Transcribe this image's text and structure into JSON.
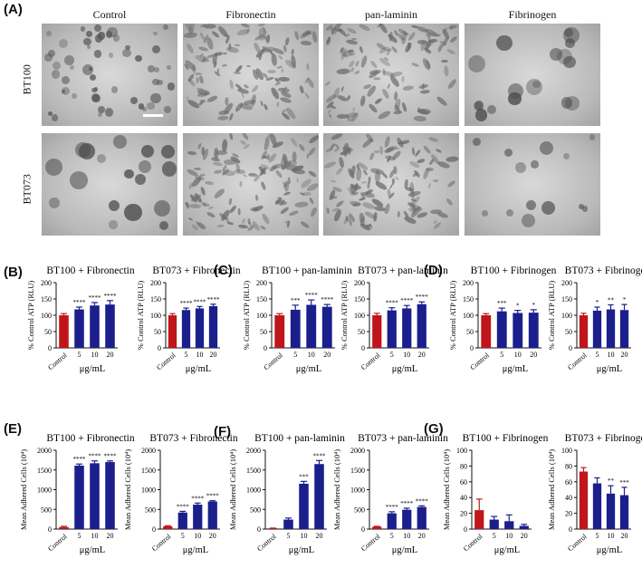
{
  "panelA": {
    "label": "(A)",
    "columns": [
      "Control",
      "Fibronectin",
      "pan-laminin",
      "Fibrinogen"
    ],
    "rows": [
      "BT100",
      "BT073"
    ],
    "images": [
      [
        "clusters",
        "spread",
        "spread",
        "clusters-large"
      ],
      [
        "clusters-large",
        "spread",
        "spread",
        "clusters-few"
      ]
    ]
  },
  "colors": {
    "control": "#c0151a",
    "treated": "#1a1f8c",
    "axis": "#111111"
  },
  "panel_labels": {
    "B": "(B)",
    "C": "(C)",
    "D": "(D)",
    "E": "(E)",
    "F": "(F)",
    "G": "(G)"
  },
  "chart_data": [
    {
      "type": "bar",
      "panel": "B",
      "title": "BT100 + Fibronectin",
      "ylabel": "% Control ATP (RLU)",
      "xlabel": "μg/mL",
      "categories": [
        "Control",
        "5",
        "10",
        "20"
      ],
      "values": [
        100,
        118,
        130,
        133
      ],
      "errors": [
        5,
        7,
        9,
        12
      ],
      "significance": [
        "",
        "****",
        "****",
        "****"
      ],
      "ylim": [
        0,
        200
      ],
      "yticks": [
        0,
        50,
        100,
        150,
        200
      ]
    },
    {
      "type": "bar",
      "panel": "B",
      "title": "BT073 + Fibronectin",
      "ylabel": "% Control ATP (RLU)",
      "xlabel": "μg/mL",
      "categories": [
        "Control",
        "5",
        "10",
        "20"
      ],
      "values": [
        100,
        116,
        121,
        128
      ],
      "errors": [
        5,
        6,
        6,
        6
      ],
      "significance": [
        "",
        "****",
        "****",
        "****"
      ],
      "ylim": [
        0,
        200
      ],
      "yticks": [
        0,
        50,
        100,
        150,
        200
      ]
    },
    {
      "type": "bar",
      "panel": "C",
      "title": "BT100 + pan-laminin",
      "ylabel": "% Control ATP (RLU)",
      "xlabel": "μg/mL",
      "categories": [
        "Control",
        "5",
        "10",
        "20"
      ],
      "values": [
        100,
        117,
        132,
        126
      ],
      "errors": [
        5,
        14,
        15,
        7
      ],
      "significance": [
        "",
        "***",
        "****",
        "****"
      ],
      "ylim": [
        0,
        200
      ],
      "yticks": [
        0,
        50,
        100,
        150,
        200
      ]
    },
    {
      "type": "bar",
      "panel": "C",
      "title": "BT073 + pan-laminin",
      "ylabel": "% Control ATP (RLU)",
      "xlabel": "μg/mL",
      "categories": [
        "Control",
        "5",
        "10",
        "20"
      ],
      "values": [
        100,
        115,
        121,
        134
      ],
      "errors": [
        6,
        8,
        9,
        7
      ],
      "significance": [
        "",
        "****",
        "****",
        "****"
      ],
      "ylim": [
        0,
        200
      ],
      "yticks": [
        0,
        50,
        100,
        150,
        200
      ]
    },
    {
      "type": "bar",
      "panel": "D",
      "title": "BT100 + Fibrinogen",
      "ylabel": "% Control ATP (RLU)",
      "xlabel": "μg/mL",
      "categories": [
        "Control",
        "5",
        "10",
        "20"
      ],
      "values": [
        100,
        112,
        107,
        108
      ],
      "errors": [
        5,
        10,
        8,
        9
      ],
      "significance": [
        "",
        "***",
        "*",
        "*"
      ],
      "ylim": [
        0,
        200
      ],
      "yticks": [
        0,
        50,
        100,
        150,
        200
      ]
    },
    {
      "type": "bar",
      "panel": "D",
      "title": "BT073 + Fibrinogen",
      "ylabel": "% Control ATP (RLU)",
      "xlabel": "μg/mL",
      "categories": [
        "Control",
        "5",
        "10",
        "20"
      ],
      "values": [
        100,
        114,
        118,
        116
      ],
      "errors": [
        6,
        11,
        14,
        17
      ],
      "significance": [
        "",
        "*",
        "**",
        "*"
      ],
      "ylim": [
        0,
        200
      ],
      "yticks": [
        0,
        50,
        100,
        150,
        200
      ]
    },
    {
      "type": "bar",
      "panel": "E",
      "title": "BT100 + Fibronectin",
      "ylabel": "Mean Adhered Cells (10⁴)",
      "xlabel": "μg/mL",
      "categories": [
        "Control",
        "5",
        "10",
        "20"
      ],
      "values": [
        50,
        1610,
        1670,
        1700
      ],
      "errors": [
        20,
        40,
        60,
        30
      ],
      "significance": [
        "",
        "****",
        "****",
        "****"
      ],
      "ylim": [
        0,
        2000
      ],
      "yticks": [
        0,
        500,
        1000,
        1500,
        2000
      ]
    },
    {
      "type": "bar",
      "panel": "E",
      "title": "BT073 + Fibronectin",
      "ylabel": "Mean Adhered Cells (10⁴)",
      "xlabel": "μg/mL",
      "categories": [
        "Control",
        "5",
        "10",
        "20"
      ],
      "values": [
        70,
        420,
        620,
        700
      ],
      "errors": [
        15,
        30,
        40,
        20
      ],
      "significance": [
        "",
        "****",
        "****",
        "****"
      ],
      "ylim": [
        0,
        2000
      ],
      "yticks": [
        0,
        500,
        1000,
        1500,
        2000
      ]
    },
    {
      "type": "bar",
      "panel": "F",
      "title": "BT100 + pan-laminin",
      "ylabel": "Mean Adhered Cells (10⁴)",
      "xlabel": "μg/mL",
      "categories": [
        "Control",
        "5",
        "10",
        "20"
      ],
      "values": [
        20,
        240,
        1150,
        1650
      ],
      "errors": [
        5,
        40,
        60,
        90
      ],
      "significance": [
        "",
        "",
        "***",
        "****"
      ],
      "ylim": [
        0,
        2000
      ],
      "yticks": [
        0,
        500,
        1000,
        1500,
        2000
      ]
    },
    {
      "type": "bar",
      "panel": "F",
      "title": "BT073 + pan-laminin",
      "ylabel": "Mean Adhered Cells (10⁴)",
      "xlabel": "μg/mL",
      "categories": [
        "Control",
        "5",
        "10",
        "20"
      ],
      "values": [
        60,
        400,
        490,
        560
      ],
      "errors": [
        10,
        40,
        40,
        30
      ],
      "significance": [
        "",
        "****",
        "****",
        "****"
      ],
      "ylim": [
        0,
        2000
      ],
      "yticks": [
        0,
        500,
        1000,
        1500,
        2000
      ]
    },
    {
      "type": "bar",
      "panel": "G",
      "title": "BT100 + Fibrinogen",
      "ylabel": "Mean Adhered Cells (10⁴)",
      "xlabel": "μg/mL",
      "categories": [
        "Control",
        "5",
        "10",
        "20"
      ],
      "values": [
        24,
        12,
        10,
        4
      ],
      "errors": [
        14,
        4,
        8,
        2
      ],
      "significance": [
        "",
        "",
        "",
        ""
      ],
      "ylim": [
        0,
        100
      ],
      "yticks": [
        0,
        20,
        40,
        60,
        80,
        100
      ]
    },
    {
      "type": "bar",
      "panel": "G",
      "title": "BT073 + Fibrinogen",
      "ylabel": "Mean Adhered Cells (10⁴)",
      "xlabel": "μg/mL",
      "categories": [
        "Control",
        "5",
        "10",
        "20"
      ],
      "values": [
        73,
        58,
        45,
        43
      ],
      "errors": [
        5,
        7,
        10,
        10
      ],
      "significance": [
        "",
        "",
        "**",
        "***"
      ],
      "ylim": [
        0,
        100
      ],
      "yticks": [
        0,
        20,
        40,
        60,
        80,
        100
      ]
    }
  ]
}
